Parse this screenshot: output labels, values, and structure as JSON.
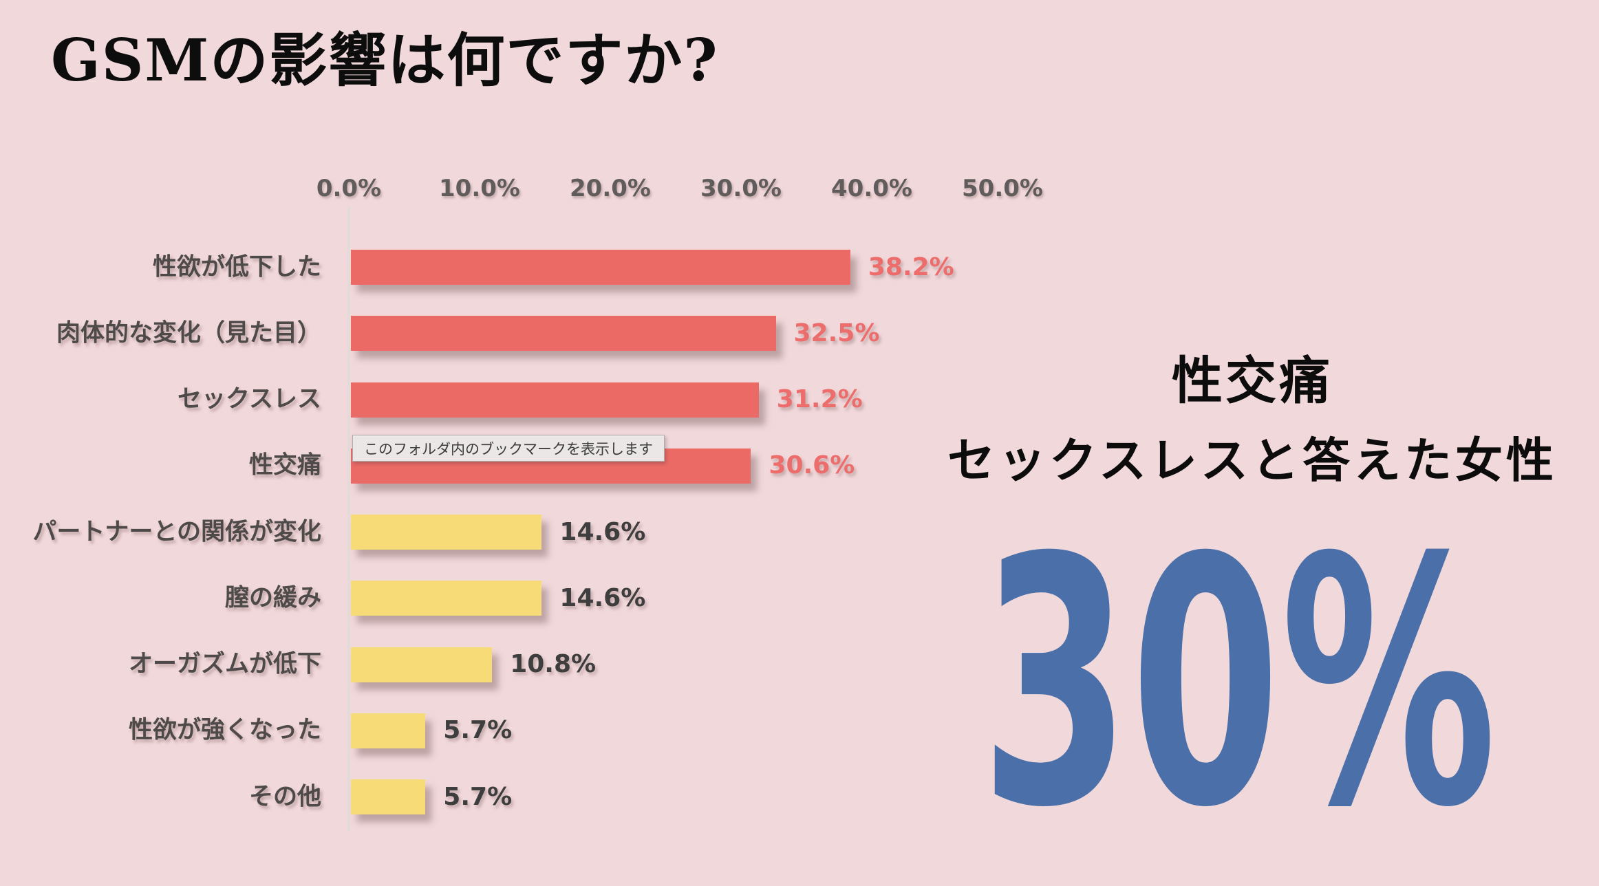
{
  "page": {
    "background_color": "#f1d8da"
  },
  "title": {
    "text": "GSMの影響は何ですか?"
  },
  "tooltip": {
    "text": "このフォルダ内のブックマークを表示します"
  },
  "chart_data": {
    "type": "bar",
    "orientation": "horizontal",
    "title": "GSMの影響は何ですか?",
    "categories": [
      "性欲が低下した",
      "肉体的な変化（見た目）",
      "セックスレス",
      "性交痛",
      "パートナーとの関係が変化",
      "膣の緩み",
      "オーガズムが低下",
      "性欲が強くなった",
      "その他"
    ],
    "values": [
      38.2,
      32.5,
      31.2,
      30.6,
      14.6,
      14.6,
      10.8,
      5.7,
      5.7
    ],
    "value_labels": [
      "38.2%",
      "32.5%",
      "31.2%",
      "30.6%",
      "14.6%",
      "14.6%",
      "10.8%",
      "5.7%",
      "5.7%"
    ],
    "bar_colors": [
      "#eb6a66",
      "#eb6a66",
      "#eb6a66",
      "#eb6a66",
      "#f7db76",
      "#f7db76",
      "#f7db76",
      "#f7db76",
      "#f7db76"
    ],
    "value_label_colors": [
      "#ec6d6b",
      "#ec6d6b",
      "#ec6d6b",
      "#ec6d6b",
      "#3e3e3e",
      "#3e3e3e",
      "#3e3e3e",
      "#3e3e3e",
      "#3e3e3e"
    ],
    "x_ticks": [
      "0.0%",
      "10.0%",
      "20.0%",
      "30.0%",
      "40.0%",
      "50.0%"
    ],
    "xlim": [
      0,
      50
    ],
    "grid": false,
    "legend": false,
    "emphasis_color": "#eb6a66",
    "normal_color": "#f7db76"
  },
  "callout": {
    "line1": "性交痛",
    "line2": "セックスレスと答えた女性",
    "stat": "30%",
    "stat_color": "#4a6fa9"
  }
}
